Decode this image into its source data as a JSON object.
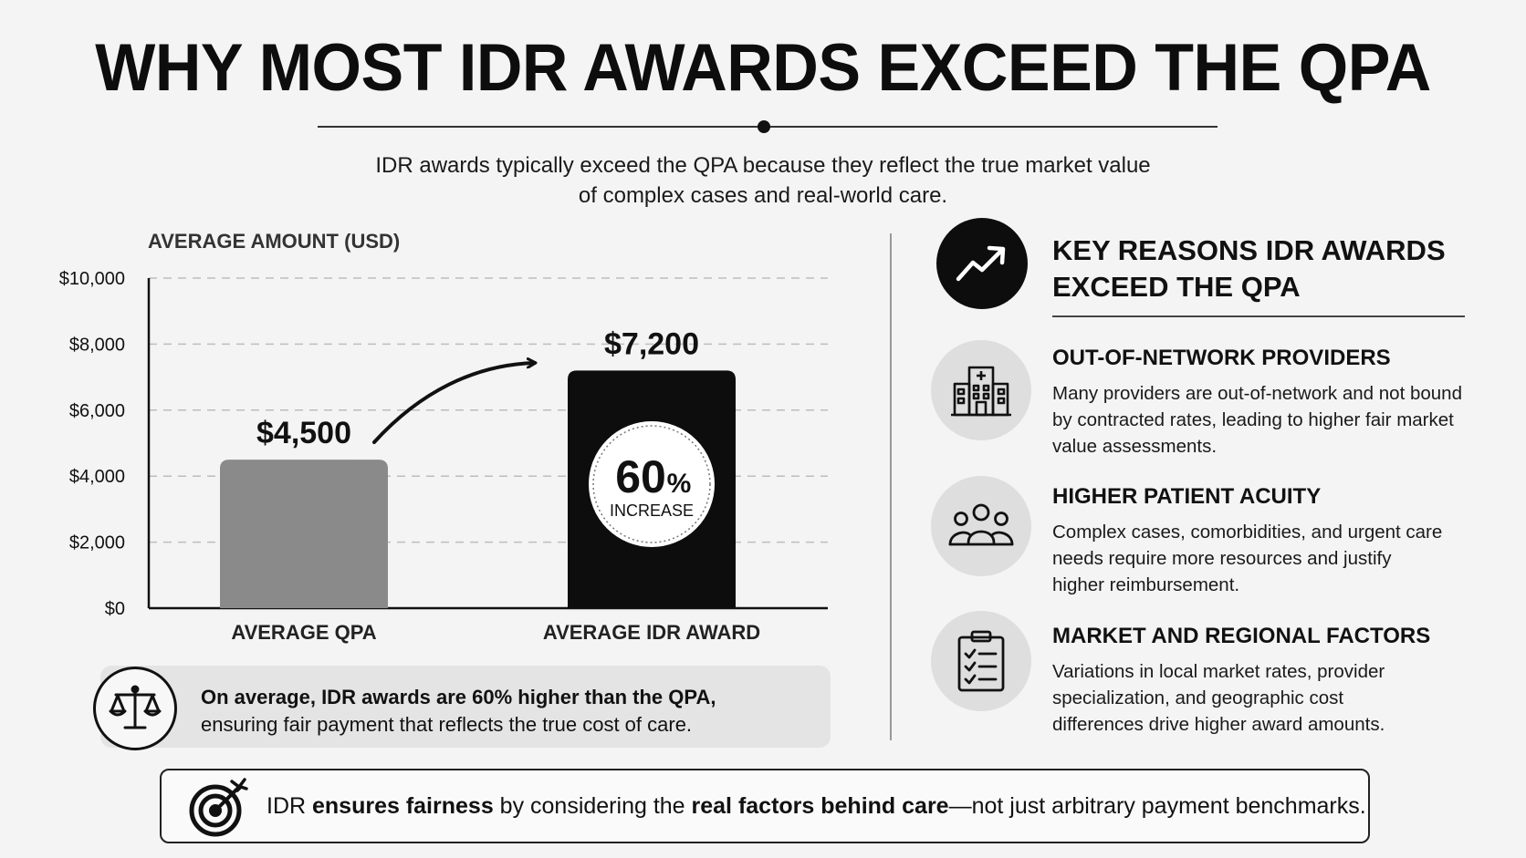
{
  "title": "WHY MOST IDR AWARDS EXCEED THE QPA",
  "subtitle": {
    "line1": "IDR awards typically exceed the QPA because they reflect the true market value",
    "line2": "of complex cases and real-world care."
  },
  "chart_data": {
    "type": "bar",
    "title": "",
    "ylabel": "AVERAGE AMOUNT (USD)",
    "xlabel": "",
    "categories": [
      "AVERAGE QPA",
      "AVERAGE IDR AWARD"
    ],
    "values": [
      4500,
      7200
    ],
    "value_labels": [
      "$4,500",
      "$7,200"
    ],
    "bar_colors": [
      "#8a8a8a",
      "#0d0d0d"
    ],
    "ylim": [
      0,
      10000
    ],
    "yticks": [
      0,
      2000,
      4000,
      6000,
      8000,
      10000
    ],
    "ytick_labels": [
      "$0",
      "$2,000",
      "$4,000",
      "$6,000",
      "$8,000",
      "$10,000"
    ],
    "grid": true,
    "annotation": {
      "value": "60",
      "symbol": "%",
      "caption": "INCREASE"
    }
  },
  "summary": {
    "bold": "On average, IDR awards are 60% higher than the QPA,",
    "rest": "ensuring fair payment that reflects the true cost of care.",
    "icon": "scale-icon"
  },
  "reasons": {
    "title_line1": "KEY REASONS IDR AWARDS",
    "title_line2": "EXCEED THE QPA",
    "icon": "trend-up-icon",
    "items": [
      {
        "icon": "hospital-icon",
        "title": "OUT-OF-NETWORK PROVIDERS",
        "lines": [
          "Many providers are out-of-network and not bound",
          "by contracted rates, leading to higher fair market",
          "value assessments."
        ]
      },
      {
        "icon": "people-icon",
        "title": "HIGHER PATIENT ACUITY",
        "lines": [
          "Complex cases, comorbidities, and urgent care",
          "needs require more resources and justify",
          "higher reimbursement."
        ]
      },
      {
        "icon": "clipboard-icon",
        "title": "MARKET AND REGIONAL FACTORS",
        "lines": [
          "Variations in local market rates, provider",
          "specialization, and geographic cost",
          "differences drive higher award amounts."
        ]
      }
    ]
  },
  "footer": {
    "icon": "target-icon",
    "part1": "IDR ",
    "bold1": "ensures fairness",
    "part2": " by considering the ",
    "bold2": "real factors behind care",
    "part3": "—not just arbitrary payment benchmarks."
  }
}
